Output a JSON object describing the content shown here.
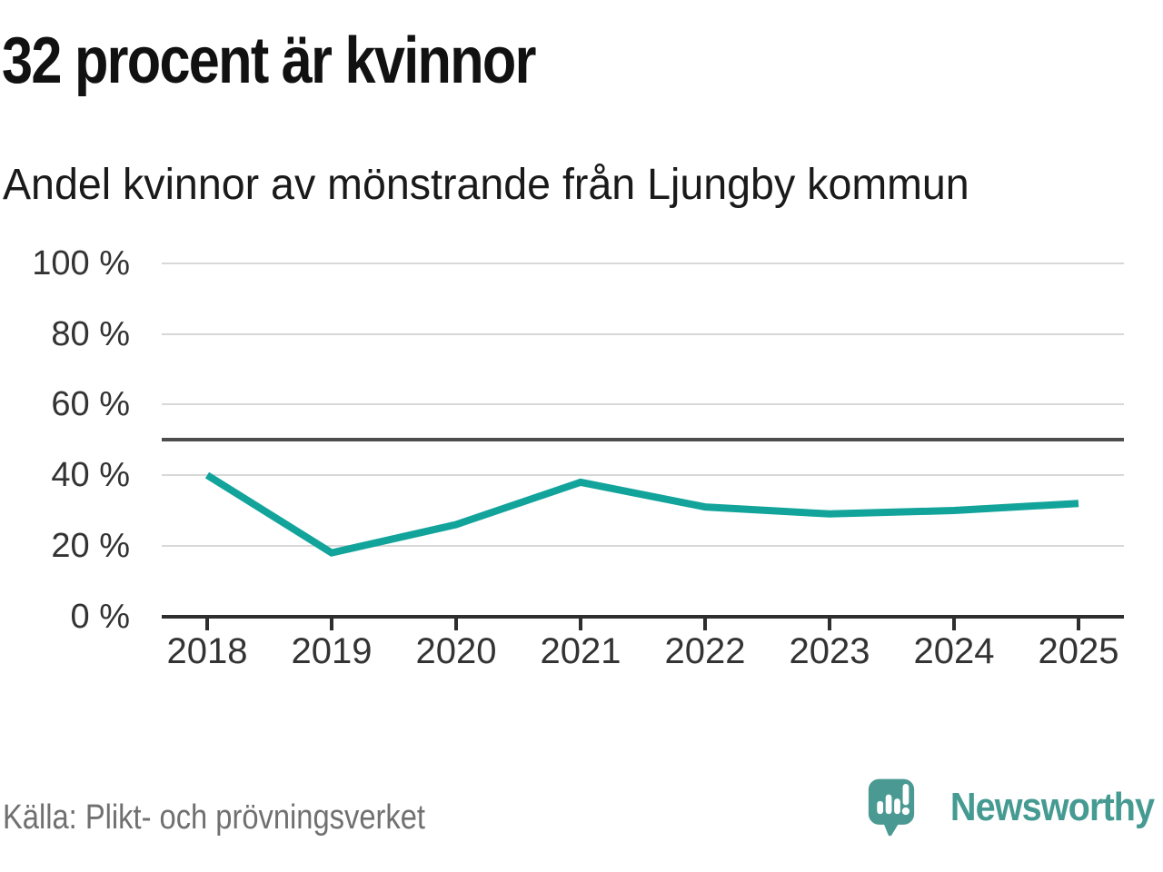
{
  "header": {
    "title": "32 procent är kvinnor",
    "subtitle": "Andel kvinnor av mönstrande från Ljungby kommun"
  },
  "chart_data": {
    "type": "line",
    "title": "32 procent är kvinnor",
    "subtitle": "Andel kvinnor av mönstrande från Ljungby kommun",
    "categories": [
      "2018",
      "2019",
      "2020",
      "2021",
      "2022",
      "2023",
      "2024",
      "2025"
    ],
    "series": [
      {
        "name": "Andel kvinnor av mönstrande",
        "values": [
          40,
          18,
          26,
          38,
          31,
          29,
          30,
          32
        ]
      }
    ],
    "unit": "%",
    "ylim": [
      0,
      100
    ],
    "yticks": [
      0,
      20,
      40,
      60,
      80,
      100
    ],
    "ytick_labels": [
      "0 %",
      "20 %",
      "40 %",
      "60 %",
      "80 %",
      "100 %"
    ],
    "reference_line": 50,
    "grid": "horizontal",
    "legend_position": "none",
    "line_color": "#12a49b"
  },
  "footer": {
    "source": "Källa: Plikt- och prövningsverket",
    "brand": "Newsworthy"
  },
  "colors": {
    "accent_line": "#12a49b",
    "brand_teal": "#4a9992",
    "gridline": "#d8d8d8",
    "reference_line": "#4d4d4d",
    "axis": "#2e2e2e",
    "title_text": "#111111",
    "tick_text": "#333333",
    "muted_text": "#707070"
  },
  "icons": {
    "brand_icon": "newsworthy-speech-bubble-bar-chart-icon"
  }
}
